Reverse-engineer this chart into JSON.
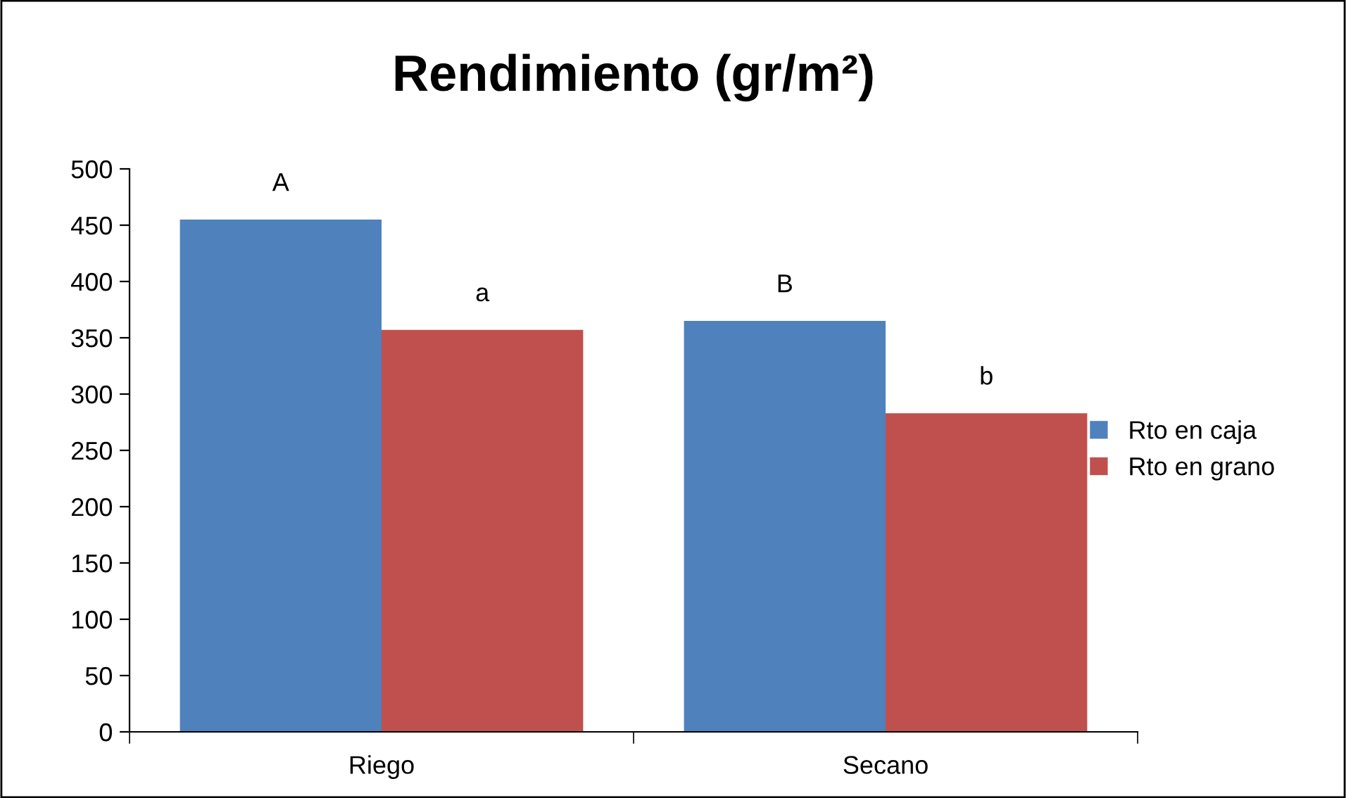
{
  "chart_data": {
    "type": "bar",
    "title": "Rendimiento (gr/m²)",
    "categories": [
      "Riego",
      "Secano"
    ],
    "series": [
      {
        "name": "Rto en caja",
        "color": "#4f81bd",
        "values": [
          455,
          365
        ]
      },
      {
        "name": "Rto en grano",
        "color": "#c0504d",
        "values": [
          357,
          283
        ]
      }
    ],
    "ylim": [
      0,
      500
    ],
    "yticks": [
      0,
      50,
      100,
      150,
      200,
      250,
      300,
      350,
      400,
      450,
      500
    ],
    "grid": false,
    "legend": "right",
    "annotations": [
      "A",
      "a",
      "B",
      "b"
    ]
  }
}
